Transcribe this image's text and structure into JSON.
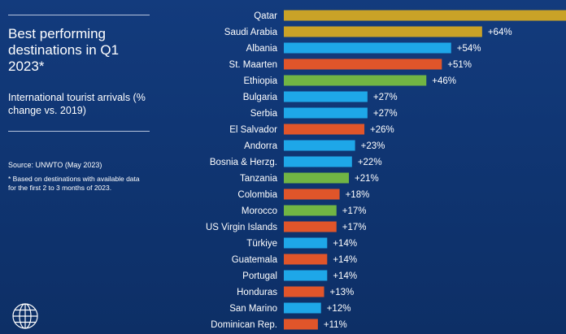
{
  "title": "Best performing destinations in Q1 2023*",
  "subtitle": "International tourist arrivals (% change vs. 2019)",
  "source": "Source: UNWTO (May 2023)",
  "footnote": "* Based on destinations with available data for the first 2 to 3 months of 2023.",
  "colors": {
    "background": "#0f3470",
    "gold": "#c9a227",
    "blue": "#1ea7e8",
    "orange": "#e0552a",
    "green": "#71b544"
  },
  "icons": [
    "globe-icon"
  ],
  "chart_data": {
    "type": "bar",
    "orientation": "horizontal",
    "categories": [
      "Qatar",
      "Saudi Arabia",
      "Albania",
      "St. Maarten",
      "Ethiopia",
      "Bulgaria",
      "Serbia",
      "El Salvador",
      "Andorra",
      "Bosnia & Herzg.",
      "Tanzania",
      "Colombia",
      "Morocco",
      "US Virgin Islands",
      "Türkiye",
      "Guatemala",
      "Portugal",
      "Honduras",
      "San Marino",
      "Dominican Rep."
    ],
    "values": [
      null,
      64,
      54,
      51,
      46,
      27,
      27,
      26,
      23,
      22,
      21,
      18,
      17,
      17,
      14,
      14,
      14,
      13,
      12,
      11
    ],
    "labels": [
      "",
      "+64%",
      "+54%",
      "+51%",
      "+46%",
      "+27%",
      "+27%",
      "+26%",
      "+23%",
      "+22%",
      "+21%",
      "+18%",
      "+17%",
      "+17%",
      "+14%",
      "+14%",
      "+14%",
      "+13%",
      "+12%",
      "+11%"
    ],
    "bar_colors": [
      "#c9a227",
      "#c9a227",
      "#1ea7e8",
      "#e0552a",
      "#71b544",
      "#1ea7e8",
      "#1ea7e8",
      "#e0552a",
      "#1ea7e8",
      "#1ea7e8",
      "#71b544",
      "#e0552a",
      "#71b544",
      "#e0552a",
      "#1ea7e8",
      "#e0552a",
      "#1ea7e8",
      "#e0552a",
      "#1ea7e8",
      "#e0552a"
    ],
    "note": "Qatar bar extends beyond the visible chart area",
    "grid": false
  }
}
